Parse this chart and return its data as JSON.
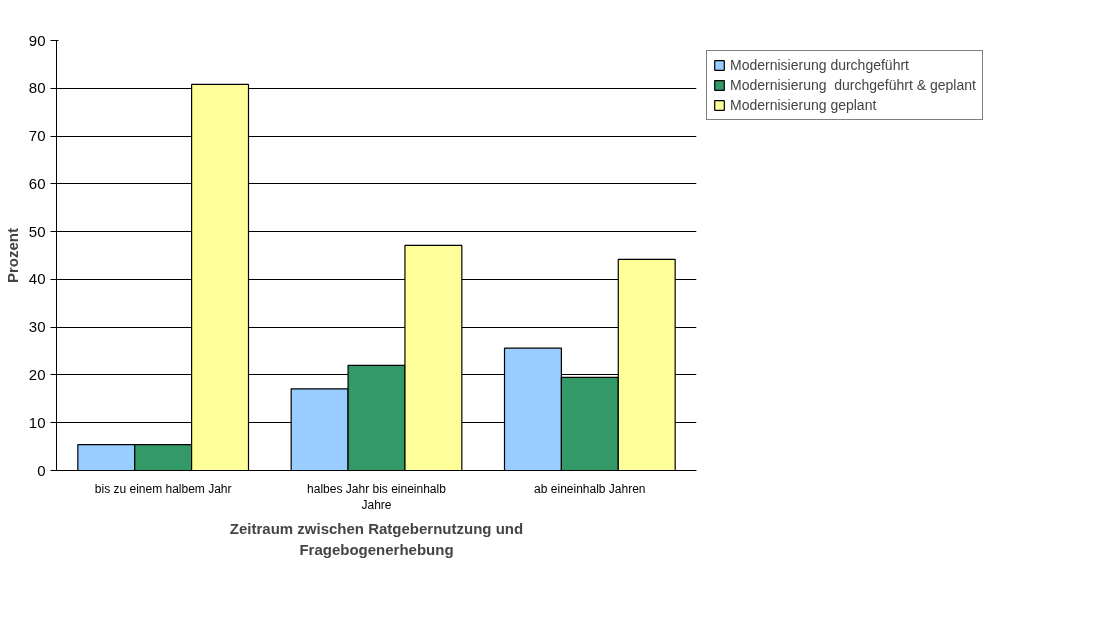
{
  "chart_data": {
    "type": "bar",
    "xlabel": "Zeitraum zwischen Ratgebernutzung und\nFragebogenerhebung",
    "ylabel": "Prozent",
    "categories": [
      "bis zu einem halbem Jahr",
      "halbes Jahr bis eineinhalb\nJahre",
      "ab eineinhalb Jahren"
    ],
    "series": [
      {
        "name": "Modernisierung durchgeführt",
        "color": "#99ccff",
        "values": [
          5.4,
          17.1,
          25.6
        ]
      },
      {
        "name": "Modernisierung  durchgeführt & geplant",
        "color": "#339966",
        "values": [
          5.4,
          22.0,
          19.5
        ]
      },
      {
        "name": "Modernisierung geplant",
        "color": "#ffff99",
        "values": [
          80.8,
          47.1,
          44.2
        ]
      }
    ],
    "ylim": [
      0,
      90
    ],
    "yticks": [
      0,
      10,
      20,
      30,
      40,
      50,
      60,
      70,
      80,
      90
    ],
    "grid": "y",
    "legend": "right"
  }
}
